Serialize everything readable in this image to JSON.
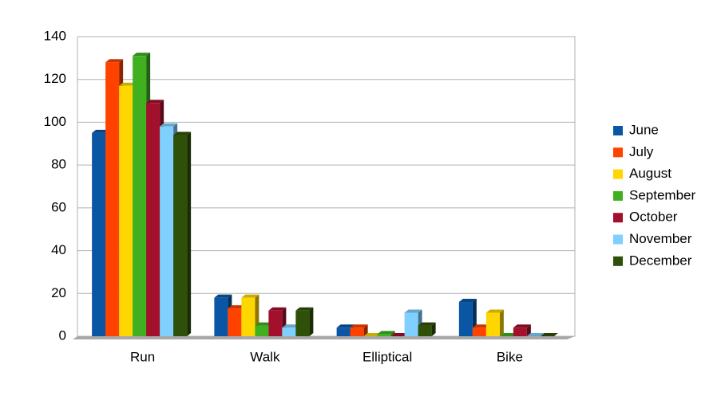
{
  "chart_data": {
    "type": "bar",
    "categories": [
      "Run",
      "Walk",
      "Elliptical",
      "Bike"
    ],
    "series": [
      {
        "name": "June",
        "color": "#0a56a5",
        "values": [
          95,
          18,
          4,
          16
        ]
      },
      {
        "name": "July",
        "color": "#ff4200",
        "values": [
          128,
          13,
          4,
          4
        ]
      },
      {
        "name": "August",
        "color": "#ffd700",
        "values": [
          117,
          18,
          0,
          11
        ]
      },
      {
        "name": "September",
        "color": "#40b020",
        "values": [
          131,
          5,
          1,
          0
        ]
      },
      {
        "name": "October",
        "color": "#a3102c",
        "values": [
          109,
          12,
          0,
          4
        ]
      },
      {
        "name": "November",
        "color": "#80d0ff",
        "values": [
          98,
          4,
          11,
          0
        ]
      },
      {
        "name": "December",
        "color": "#2f5008",
        "values": [
          94,
          12,
          5,
          0
        ]
      }
    ],
    "ylim": [
      0,
      140
    ],
    "yticks": [
      0,
      20,
      40,
      60,
      80,
      100,
      120,
      140
    ],
    "grid": true,
    "legend": "right"
  }
}
